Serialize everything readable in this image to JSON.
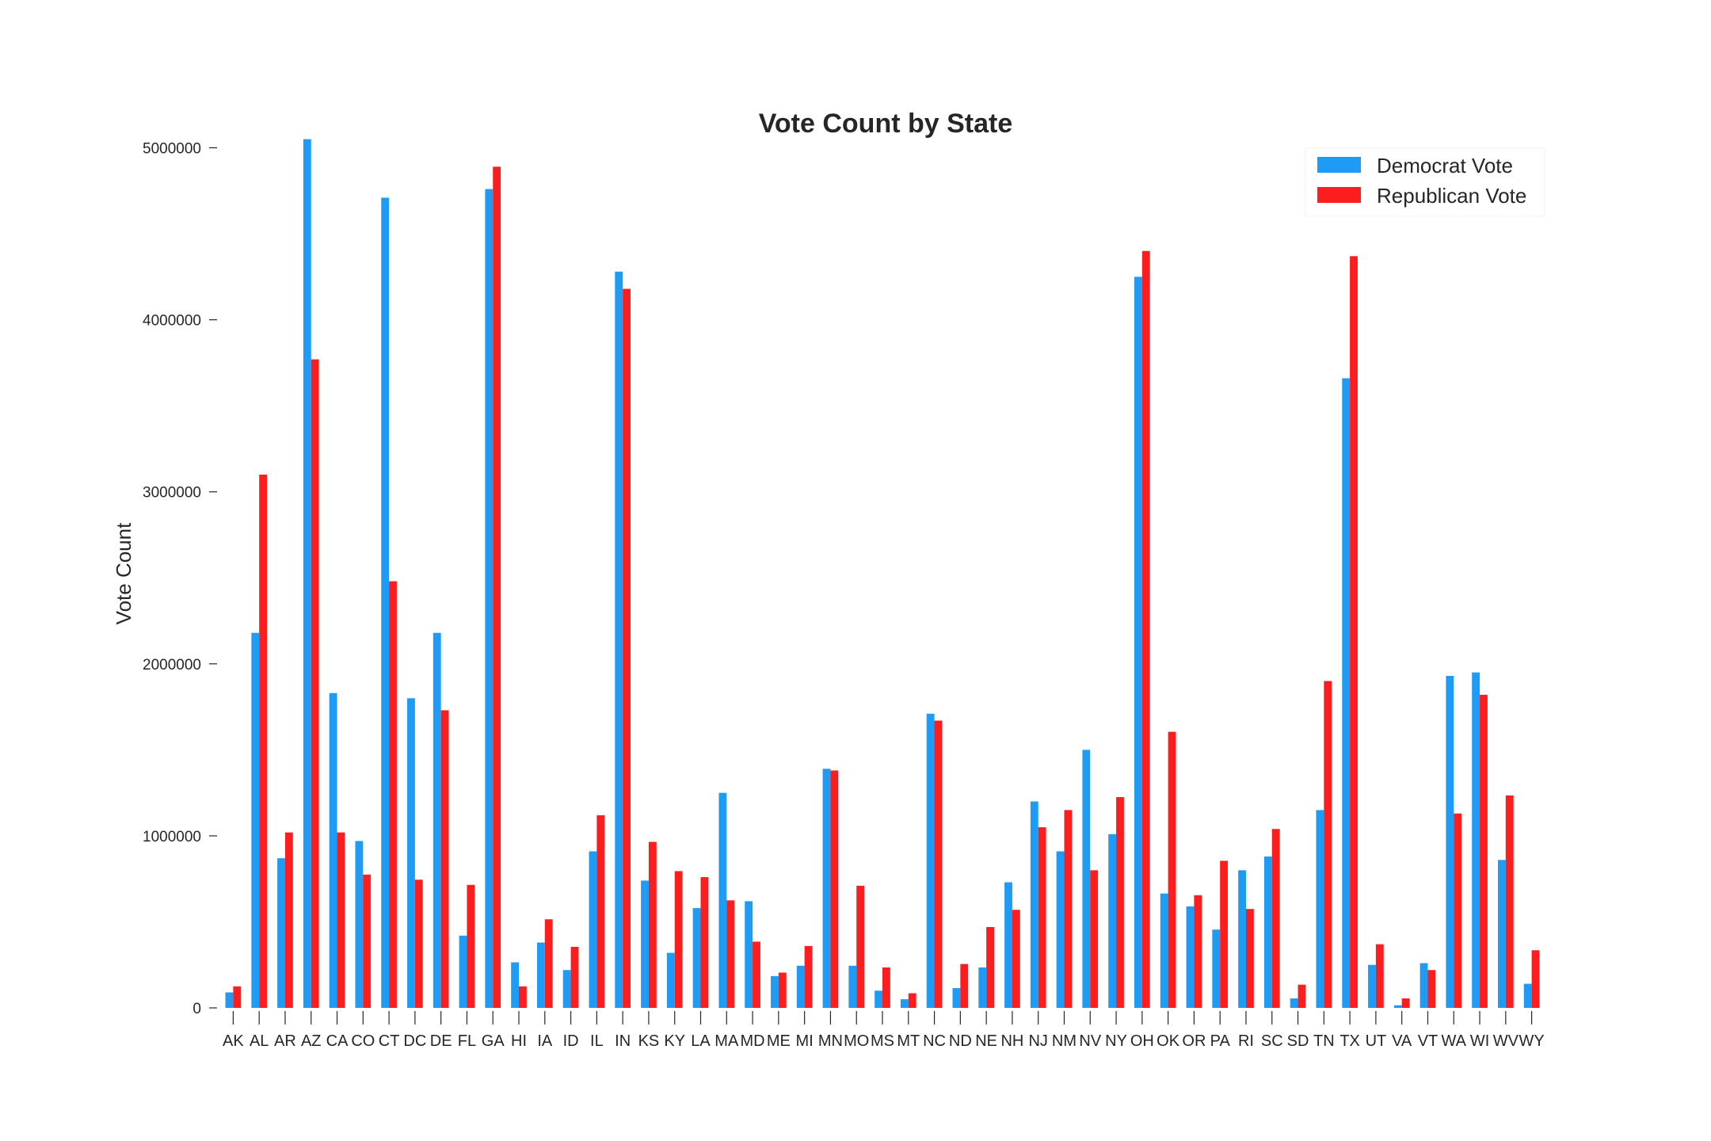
{
  "chart_data": {
    "type": "bar",
    "title": "Vote Count by State",
    "xlabel": "",
    "ylabel": "Vote Count",
    "ylim": [
      0,
      5200000
    ],
    "yticks": [
      0,
      1000000,
      2000000,
      3000000,
      4000000,
      5000000
    ],
    "ytick_labels": [
      "0",
      "1000000",
      "2000000",
      "3000000",
      "4000000",
      "5000000"
    ],
    "grid": false,
    "legend": "top-right",
    "categories": [
      "AK",
      "AL",
      "AR",
      "AZ",
      "CA",
      "CO",
      "CT",
      "DC",
      "DE",
      "FL",
      "GA",
      "HI",
      "IA",
      "ID",
      "IL",
      "IN",
      "KS",
      "KY",
      "LA",
      "MA",
      "MD",
      "ME",
      "MI",
      "MN",
      "MO",
      "MS",
      "MT",
      "NC",
      "ND",
      "NE",
      "NH",
      "NJ",
      "NM",
      "NV",
      "NY",
      "OH",
      "OK",
      "OR",
      "PA",
      "RI",
      "SC",
      "SD",
      "TN",
      "TX",
      "UT",
      "VA",
      "VT",
      "WA",
      "WI",
      "WV",
      "WY"
    ],
    "series": [
      {
        "name": "Democrat Vote",
        "color": "#1e9bf5",
        "values": [
          90000,
          2180000,
          870000,
          5050000,
          1830000,
          970000,
          4710000,
          1800000,
          2180000,
          420000,
          4760000,
          265000,
          380000,
          220000,
          910000,
          4280000,
          740000,
          320000,
          580000,
          1250000,
          620000,
          185000,
          245000,
          1390000,
          245000,
          100000,
          50000,
          1710000,
          115000,
          235000,
          730000,
          1200000,
          910000,
          1500000,
          1010000,
          4250000,
          665000,
          590000,
          455000,
          800000,
          880000,
          55000,
          1150000,
          3660000,
          250000,
          15000,
          260000,
          1930000,
          1950000,
          860000,
          140000
        ]
      },
      {
        "name": "Republican Vote",
        "color": "#fc1e1e",
        "values": [
          125000,
          3100000,
          1020000,
          3770000,
          1020000,
          775000,
          2480000,
          745000,
          1730000,
          715000,
          4890000,
          125000,
          515000,
          355000,
          1120000,
          4180000,
          965000,
          795000,
          760000,
          625000,
          385000,
          205000,
          360000,
          1380000,
          710000,
          235000,
          85000,
          1670000,
          255000,
          470000,
          570000,
          1050000,
          1150000,
          800000,
          1225000,
          4400000,
          1605000,
          655000,
          855000,
          575000,
          1040000,
          135000,
          1900000,
          4370000,
          370000,
          55000,
          220000,
          1130000,
          1820000,
          1235000,
          335000
        ]
      }
    ]
  }
}
